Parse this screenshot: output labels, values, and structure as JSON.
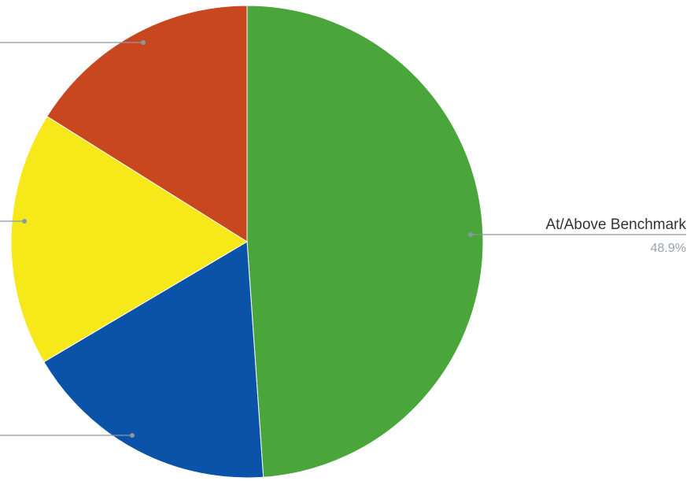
{
  "chart_data": {
    "type": "pie",
    "title": "",
    "slices": [
      {
        "label": "At/Above Benchmark",
        "value_text": "48.9%",
        "value": 48.9,
        "color": "#4aa53a"
      },
      {
        "label": "",
        "value_text": "",
        "value": 17.6,
        "color": "#0a53a8"
      },
      {
        "label": "",
        "value_text": "",
        "value": 17.4,
        "color": "#f7e81a"
      },
      {
        "label": "",
        "value_text": "",
        "value": 16.1,
        "color": "#c9471f"
      }
    ],
    "start_angle_deg": 0,
    "direction": "clockwise",
    "leader_color": "#8a97a6"
  }
}
